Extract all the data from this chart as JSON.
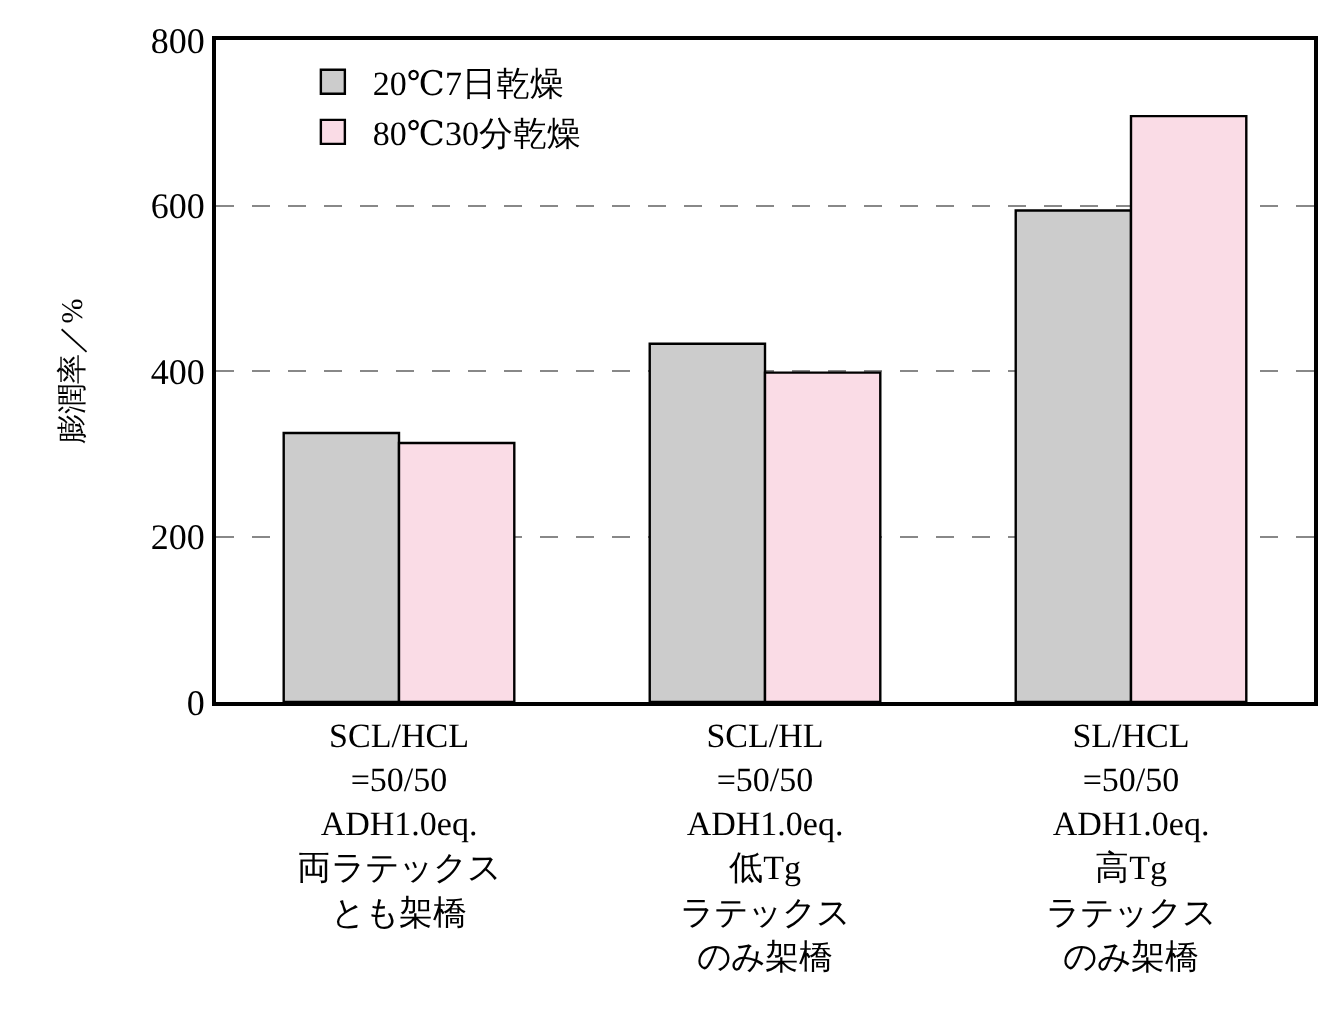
{
  "chart_data": {
    "type": "bar",
    "ylabel": "膨潤率／%",
    "categories": [
      "SCL/HCL\n=50/50\nADH1.0eq.\n両ラテックスとも架橋",
      "SCL/HL\n=50/50\nADH1.0eq.\n低Tgラテックスのみ架橋",
      "SL/HCL\n=50/50\nADH1.0eq.\n高Tgラテックスのみ架橋"
    ],
    "series": [
      {
        "name": "20℃7日乾燥",
        "color": "#cccccc",
        "values": [
          325,
          433,
          594
        ]
      },
      {
        "name": "80℃30分乾燥",
        "color": "#fadce6",
        "values": [
          313,
          398,
          708
        ]
      }
    ],
    "ylim": [
      0,
      800
    ],
    "yticks": [
      0,
      200,
      400,
      600,
      800
    ],
    "grid": "y",
    "legend": "top left"
  }
}
